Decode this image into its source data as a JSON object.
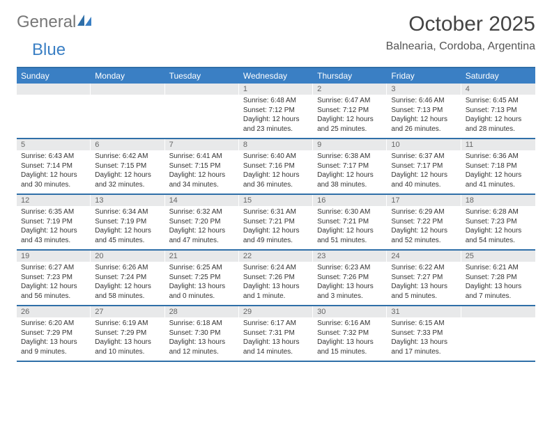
{
  "brand": {
    "part1": "General",
    "part2": "Blue"
  },
  "title": "October 2025",
  "location": "Balnearia, Cordoba, Argentina",
  "colors": {
    "header_bg": "#3a7fc4",
    "header_border": "#2f6fa8",
    "daynum_bg": "#e8e9ea",
    "text": "#333333",
    "muted": "#666666",
    "background": "#ffffff"
  },
  "day_headers": [
    "Sunday",
    "Monday",
    "Tuesday",
    "Wednesday",
    "Thursday",
    "Friday",
    "Saturday"
  ],
  "weeks": [
    [
      {
        "n": "",
        "sunrise": "",
        "sunset": "",
        "daylight": ""
      },
      {
        "n": "",
        "sunrise": "",
        "sunset": "",
        "daylight": ""
      },
      {
        "n": "",
        "sunrise": "",
        "sunset": "",
        "daylight": ""
      },
      {
        "n": "1",
        "sunrise": "Sunrise: 6:48 AM",
        "sunset": "Sunset: 7:12 PM",
        "daylight": "Daylight: 12 hours and 23 minutes."
      },
      {
        "n": "2",
        "sunrise": "Sunrise: 6:47 AM",
        "sunset": "Sunset: 7:12 PM",
        "daylight": "Daylight: 12 hours and 25 minutes."
      },
      {
        "n": "3",
        "sunrise": "Sunrise: 6:46 AM",
        "sunset": "Sunset: 7:13 PM",
        "daylight": "Daylight: 12 hours and 26 minutes."
      },
      {
        "n": "4",
        "sunrise": "Sunrise: 6:45 AM",
        "sunset": "Sunset: 7:13 PM",
        "daylight": "Daylight: 12 hours and 28 minutes."
      }
    ],
    [
      {
        "n": "5",
        "sunrise": "Sunrise: 6:43 AM",
        "sunset": "Sunset: 7:14 PM",
        "daylight": "Daylight: 12 hours and 30 minutes."
      },
      {
        "n": "6",
        "sunrise": "Sunrise: 6:42 AM",
        "sunset": "Sunset: 7:15 PM",
        "daylight": "Daylight: 12 hours and 32 minutes."
      },
      {
        "n": "7",
        "sunrise": "Sunrise: 6:41 AM",
        "sunset": "Sunset: 7:15 PM",
        "daylight": "Daylight: 12 hours and 34 minutes."
      },
      {
        "n": "8",
        "sunrise": "Sunrise: 6:40 AM",
        "sunset": "Sunset: 7:16 PM",
        "daylight": "Daylight: 12 hours and 36 minutes."
      },
      {
        "n": "9",
        "sunrise": "Sunrise: 6:38 AM",
        "sunset": "Sunset: 7:17 PM",
        "daylight": "Daylight: 12 hours and 38 minutes."
      },
      {
        "n": "10",
        "sunrise": "Sunrise: 6:37 AM",
        "sunset": "Sunset: 7:17 PM",
        "daylight": "Daylight: 12 hours and 40 minutes."
      },
      {
        "n": "11",
        "sunrise": "Sunrise: 6:36 AM",
        "sunset": "Sunset: 7:18 PM",
        "daylight": "Daylight: 12 hours and 41 minutes."
      }
    ],
    [
      {
        "n": "12",
        "sunrise": "Sunrise: 6:35 AM",
        "sunset": "Sunset: 7:19 PM",
        "daylight": "Daylight: 12 hours and 43 minutes."
      },
      {
        "n": "13",
        "sunrise": "Sunrise: 6:34 AM",
        "sunset": "Sunset: 7:19 PM",
        "daylight": "Daylight: 12 hours and 45 minutes."
      },
      {
        "n": "14",
        "sunrise": "Sunrise: 6:32 AM",
        "sunset": "Sunset: 7:20 PM",
        "daylight": "Daylight: 12 hours and 47 minutes."
      },
      {
        "n": "15",
        "sunrise": "Sunrise: 6:31 AM",
        "sunset": "Sunset: 7:21 PM",
        "daylight": "Daylight: 12 hours and 49 minutes."
      },
      {
        "n": "16",
        "sunrise": "Sunrise: 6:30 AM",
        "sunset": "Sunset: 7:21 PM",
        "daylight": "Daylight: 12 hours and 51 minutes."
      },
      {
        "n": "17",
        "sunrise": "Sunrise: 6:29 AM",
        "sunset": "Sunset: 7:22 PM",
        "daylight": "Daylight: 12 hours and 52 minutes."
      },
      {
        "n": "18",
        "sunrise": "Sunrise: 6:28 AM",
        "sunset": "Sunset: 7:23 PM",
        "daylight": "Daylight: 12 hours and 54 minutes."
      }
    ],
    [
      {
        "n": "19",
        "sunrise": "Sunrise: 6:27 AM",
        "sunset": "Sunset: 7:23 PM",
        "daylight": "Daylight: 12 hours and 56 minutes."
      },
      {
        "n": "20",
        "sunrise": "Sunrise: 6:26 AM",
        "sunset": "Sunset: 7:24 PM",
        "daylight": "Daylight: 12 hours and 58 minutes."
      },
      {
        "n": "21",
        "sunrise": "Sunrise: 6:25 AM",
        "sunset": "Sunset: 7:25 PM",
        "daylight": "Daylight: 13 hours and 0 minutes."
      },
      {
        "n": "22",
        "sunrise": "Sunrise: 6:24 AM",
        "sunset": "Sunset: 7:26 PM",
        "daylight": "Daylight: 13 hours and 1 minute."
      },
      {
        "n": "23",
        "sunrise": "Sunrise: 6:23 AM",
        "sunset": "Sunset: 7:26 PM",
        "daylight": "Daylight: 13 hours and 3 minutes."
      },
      {
        "n": "24",
        "sunrise": "Sunrise: 6:22 AM",
        "sunset": "Sunset: 7:27 PM",
        "daylight": "Daylight: 13 hours and 5 minutes."
      },
      {
        "n": "25",
        "sunrise": "Sunrise: 6:21 AM",
        "sunset": "Sunset: 7:28 PM",
        "daylight": "Daylight: 13 hours and 7 minutes."
      }
    ],
    [
      {
        "n": "26",
        "sunrise": "Sunrise: 6:20 AM",
        "sunset": "Sunset: 7:29 PM",
        "daylight": "Daylight: 13 hours and 9 minutes."
      },
      {
        "n": "27",
        "sunrise": "Sunrise: 6:19 AM",
        "sunset": "Sunset: 7:29 PM",
        "daylight": "Daylight: 13 hours and 10 minutes."
      },
      {
        "n": "28",
        "sunrise": "Sunrise: 6:18 AM",
        "sunset": "Sunset: 7:30 PM",
        "daylight": "Daylight: 13 hours and 12 minutes."
      },
      {
        "n": "29",
        "sunrise": "Sunrise: 6:17 AM",
        "sunset": "Sunset: 7:31 PM",
        "daylight": "Daylight: 13 hours and 14 minutes."
      },
      {
        "n": "30",
        "sunrise": "Sunrise: 6:16 AM",
        "sunset": "Sunset: 7:32 PM",
        "daylight": "Daylight: 13 hours and 15 minutes."
      },
      {
        "n": "31",
        "sunrise": "Sunrise: 6:15 AM",
        "sunset": "Sunset: 7:33 PM",
        "daylight": "Daylight: 13 hours and 17 minutes."
      },
      {
        "n": "",
        "sunrise": "",
        "sunset": "",
        "daylight": ""
      }
    ]
  ]
}
